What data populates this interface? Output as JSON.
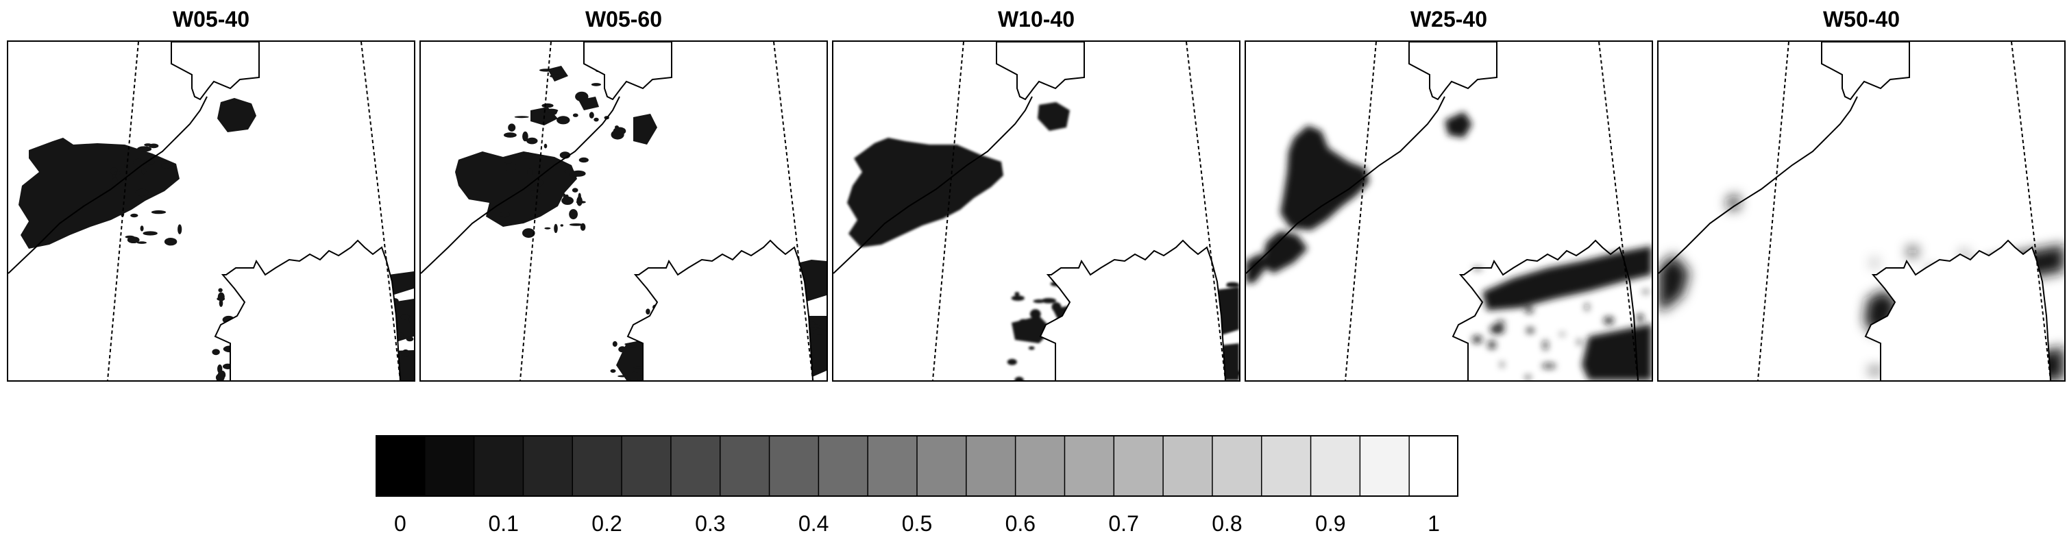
{
  "panels": [
    {
      "title": "W05-40",
      "variant": 0
    },
    {
      "title": "W05-60",
      "variant": 1
    },
    {
      "title": "W10-40",
      "variant": 2
    },
    {
      "title": "W25-40",
      "variant": 3
    },
    {
      "title": "W50-40",
      "variant": 4
    }
  ],
  "colorbar": {
    "min": 0,
    "max": 1,
    "steps": 22,
    "tick_labels": [
      "0",
      "0.1",
      "0.2",
      "0.3",
      "0.4",
      "0.5",
      "0.6",
      "0.7",
      "0.8",
      "0.9",
      "1"
    ],
    "color_dark": "#000000",
    "color_light": "#ffffff"
  }
}
